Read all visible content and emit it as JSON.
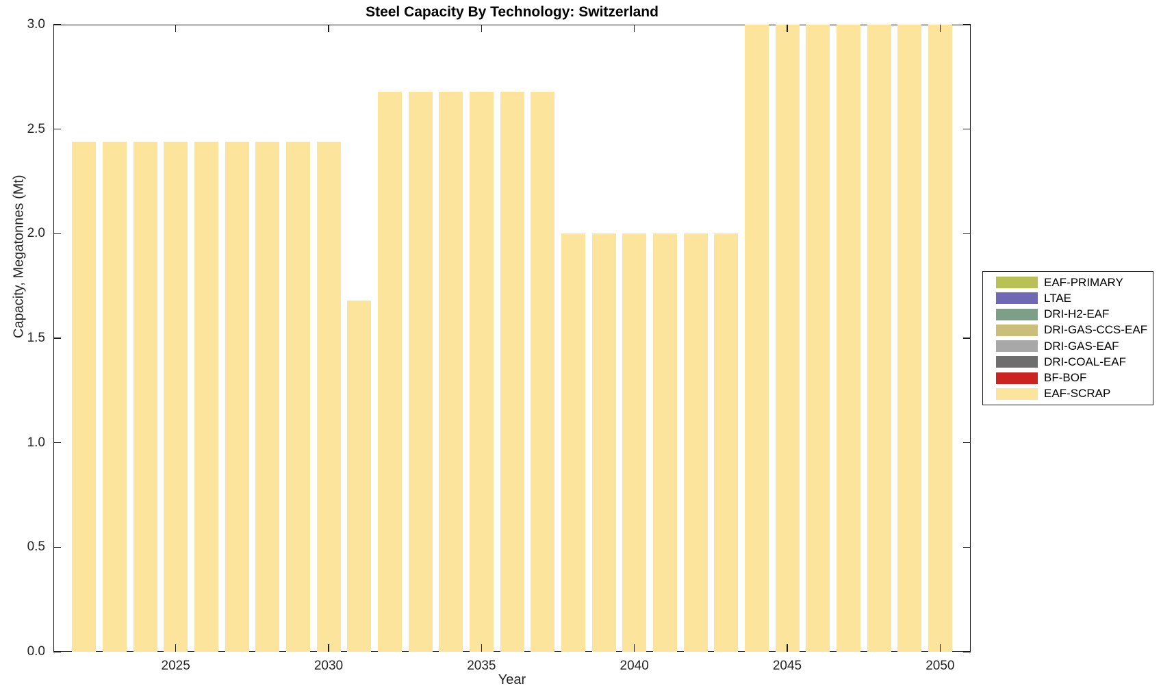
{
  "figure": {
    "title": "Steel Capacity By Technology: Switzerland",
    "xlabel": "Year",
    "ylabel": "Capacity, Megatonnes (Mt)"
  },
  "chart_data": {
    "type": "bar",
    "title": "Steel Capacity By Technology: Switzerland",
    "xlabel": "Year",
    "ylabel": "Capacity, Megatonnes (Mt)",
    "x": [
      2022,
      2023,
      2024,
      2025,
      2026,
      2027,
      2028,
      2029,
      2030,
      2031,
      2032,
      2033,
      2034,
      2035,
      2036,
      2037,
      2038,
      2039,
      2040,
      2041,
      2042,
      2043,
      2044,
      2045,
      2046,
      2047,
      2048,
      2049,
      2050
    ],
    "series": [
      {
        "name": "EAF-SCRAP",
        "color": "#FCE49C",
        "values": [
          2.44,
          2.44,
          2.44,
          2.44,
          2.44,
          2.44,
          2.44,
          2.44,
          2.44,
          1.68,
          2.68,
          2.68,
          2.68,
          2.68,
          2.68,
          2.68,
          2.0,
          2.0,
          2.0,
          2.0,
          2.0,
          2.0,
          3.0,
          3.0,
          3.0,
          3.0,
          3.0,
          3.0,
          3.0
        ]
      }
    ],
    "xlim": [
      2021,
      2051
    ],
    "ylim": [
      0,
      3
    ],
    "xticks": [
      2025,
      2030,
      2035,
      2040,
      2045,
      2050
    ],
    "xtick_labels": [
      "2025",
      "2030",
      "2035",
      "2040",
      "2045",
      "2050"
    ],
    "yticks": [
      0,
      0.5,
      1.0,
      1.5,
      2.0,
      2.5,
      3.0
    ],
    "ytick_labels": [
      "0.0",
      "0.5",
      "1.0",
      "1.5",
      "2.0",
      "2.5",
      "3.0"
    ],
    "grid": false,
    "legend_position": "right-outside",
    "legend": [
      {
        "label": "EAF-PRIMARY",
        "color": "#B7C155"
      },
      {
        "label": "LTAE",
        "color": "#7168B5"
      },
      {
        "label": "DRI-H2-EAF",
        "color": "#7BA087"
      },
      {
        "label": "DRI-GAS-CCS-EAF",
        "color": "#CABE78"
      },
      {
        "label": "DRI-GAS-EAF",
        "color": "#A8A8A8"
      },
      {
        "label": "DRI-COAL-EAF",
        "color": "#6E6E6E"
      },
      {
        "label": "BF-BOF",
        "color": "#CB2420"
      },
      {
        "label": "EAF-SCRAP",
        "color": "#FCE49C"
      }
    ]
  }
}
